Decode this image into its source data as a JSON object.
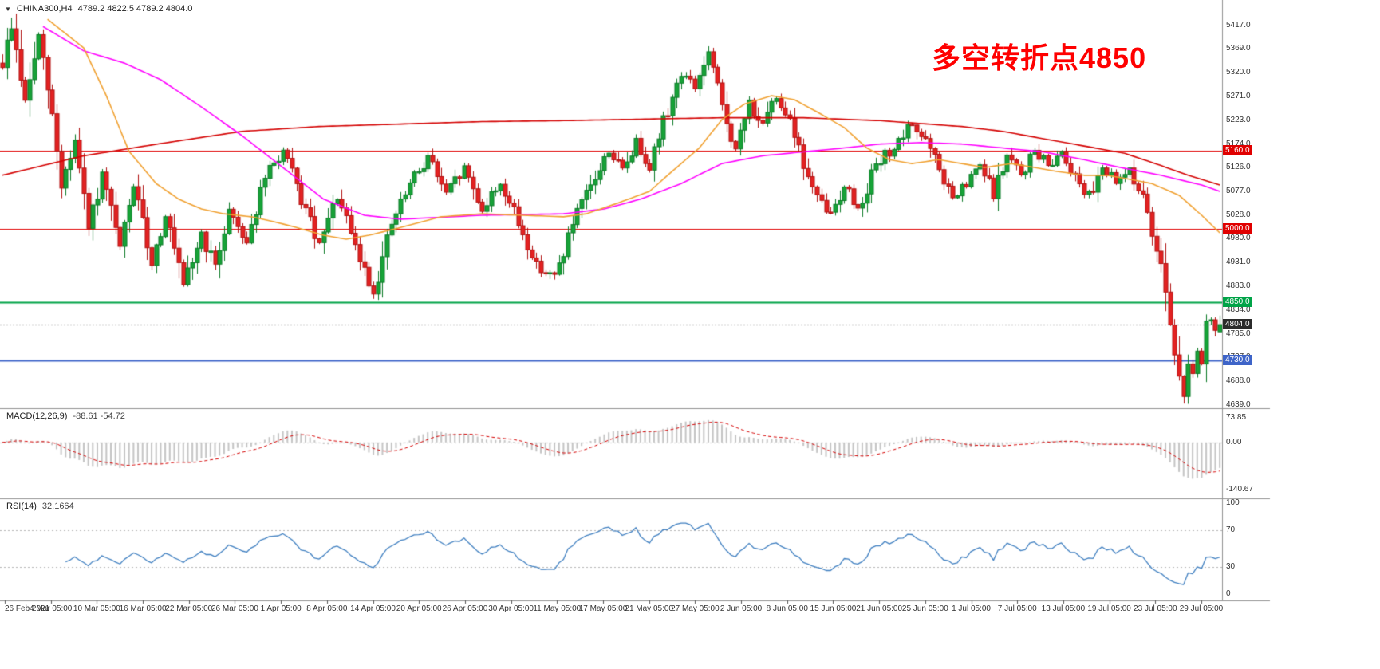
{
  "header": {
    "symbol": "CHINA300,H4",
    "ohlc": "4789.2 4822.5 4789.2 4804.0",
    "collapse_icon": "▼"
  },
  "annotation": {
    "text": "多空转折点4850",
    "color": "#ff0000"
  },
  "macd_label": {
    "name": "MACD(12,26,9)",
    "values": "-88.61 -54.72"
  },
  "rsi_label": {
    "name": "RSI(14)",
    "value": "32.1664"
  },
  "colors": {
    "background": "#ffffff",
    "bull": "#17a338",
    "bull_border": "#0b7a26",
    "bear": "#e32222",
    "bear_border": "#b01111",
    "ma_red": "#d40000",
    "ma_magenta": "#ff00ff",
    "ma_orange": "#f0a030",
    "level_red": "#e00000",
    "level_green": "#00a347",
    "level_blue": "#3e64c8",
    "current_price_line": "#666666",
    "current_tag_bg": "#2b2b2b",
    "macd_hist": "#c4c4c4",
    "macd_signal": "#d40000",
    "rsi_line": "#3f7fc0",
    "axis_text": "#333333",
    "separator": "#909090",
    "dashed_level": "#b5b5b5"
  },
  "price_tags": [
    {
      "label": "5160.0",
      "price": 5160.0,
      "bg": "#e00000"
    },
    {
      "label": "5000.0",
      "price": 5000.0,
      "bg": "#e00000"
    },
    {
      "label": "4850.0",
      "price": 4850.0,
      "bg": "#00a347"
    },
    {
      "label": "4804.0",
      "price": 4804.0,
      "bg": "#2b2b2b"
    },
    {
      "label": "4730.0",
      "price": 4730.0,
      "bg": "#3e64c8"
    }
  ],
  "chart_data": {
    "type": "candlestick",
    "symbol": "CHINA300",
    "timeframe": "H4",
    "candle_count": 270,
    "y_axis": {
      "min": 4639.0,
      "max": 5417.0,
      "tick_labels": [
        "5417.0",
        "5369.0",
        "5320.0",
        "5271.0",
        "5223.0",
        "5174.0",
        "5126.0",
        "5077.0",
        "5028.0",
        "4980.0",
        "4931.0",
        "4883.0",
        "4834.0",
        "4785.0",
        "4737.0",
        "4688.0",
        "4639.0"
      ]
    },
    "x_axis": {
      "labels": [
        "26 Feb 2021",
        "4 Mar 05:00",
        "10 Mar 05:00",
        "16 Mar 05:00",
        "22 Mar 05:00",
        "26 Mar 05:00",
        "1 Apr 05:00",
        "8 Apr 05:00",
        "14 Apr 05:00",
        "20 Apr 05:00",
        "26 Apr 05:00",
        "30 Apr 05:00",
        "11 May 05:00",
        "17 May 05:00",
        "21 May 05:00",
        "27 May 05:00",
        "2 Jun 05:00",
        "8 Jun 05:00",
        "15 Jun 05:00",
        "21 Jun 05:00",
        "25 Jun 05:00",
        "1 Jul 05:00",
        "7 Jul 05:00",
        "13 Jul 05:00",
        "19 Jul 05:00",
        "23 Jul 05:00",
        "29 Jul 05:00"
      ]
    },
    "price_path_anchors": [
      [
        0,
        5340
      ],
      [
        2,
        5415
      ],
      [
        5,
        5260
      ],
      [
        8,
        5395
      ],
      [
        11,
        5230
      ],
      [
        13,
        5090
      ],
      [
        16,
        5180
      ],
      [
        19,
        5000
      ],
      [
        22,
        5110
      ],
      [
        26,
        4960
      ],
      [
        29,
        5090
      ],
      [
        33,
        4930
      ],
      [
        36,
        5030
      ],
      [
        40,
        4880
      ],
      [
        44,
        4990
      ],
      [
        47,
        4920
      ],
      [
        50,
        5040
      ],
      [
        54,
        4975
      ],
      [
        58,
        5105
      ],
      [
        62,
        5160
      ],
      [
        66,
        5060
      ],
      [
        70,
        4965
      ],
      [
        74,
        5065
      ],
      [
        78,
        4960
      ],
      [
        82,
        4870
      ],
      [
        86,
        5010
      ],
      [
        90,
        5090
      ],
      [
        94,
        5150
      ],
      [
        98,
        5070
      ],
      [
        102,
        5125
      ],
      [
        106,
        5040
      ],
      [
        110,
        5095
      ],
      [
        114,
        5010
      ],
      [
        118,
        4925
      ],
      [
        122,
        4900
      ],
      [
        126,
        5010
      ],
      [
        130,
        5085
      ],
      [
        134,
        5160
      ],
      [
        137,
        5120
      ],
      [
        140,
        5180
      ],
      [
        143,
        5130
      ],
      [
        146,
        5220
      ],
      [
        150,
        5320
      ],
      [
        153,
        5290
      ],
      [
        156,
        5360
      ],
      [
        159,
        5250
      ],
      [
        162,
        5160
      ],
      [
        165,
        5260
      ],
      [
        168,
        5210
      ],
      [
        171,
        5270
      ],
      [
        174,
        5230
      ],
      [
        177,
        5130
      ],
      [
        180,
        5060
      ],
      [
        183,
        5030
      ],
      [
        186,
        5090
      ],
      [
        189,
        5040
      ],
      [
        192,
        5110
      ],
      [
        195,
        5150
      ],
      [
        198,
        5175
      ],
      [
        201,
        5215
      ],
      [
        204,
        5180
      ],
      [
        207,
        5120
      ],
      [
        210,
        5060
      ],
      [
        213,
        5090
      ],
      [
        216,
        5130
      ],
      [
        219,
        5070
      ],
      [
        222,
        5150
      ],
      [
        225,
        5110
      ],
      [
        228,
        5160
      ],
      [
        231,
        5130
      ],
      [
        234,
        5160
      ],
      [
        237,
        5110
      ],
      [
        240,
        5070
      ],
      [
        243,
        5130
      ],
      [
        246,
        5090
      ],
      [
        249,
        5125
      ],
      [
        252,
        5060
      ],
      [
        254,
        4990
      ],
      [
        256,
        4940
      ],
      [
        258,
        4810
      ],
      [
        260,
        4690
      ],
      [
        261,
        4655
      ],
      [
        262,
        4735
      ],
      [
        263,
        4705
      ],
      [
        264,
        4745
      ],
      [
        265,
        4715
      ],
      [
        266,
        4800
      ],
      [
        267,
        4815
      ],
      [
        268,
        4790
      ],
      [
        269,
        4804
      ]
    ],
    "last_candle_ohlc": [
      4789.2,
      4822.5,
      4789.2,
      4804.0
    ],
    "wick_extremes": {
      "high_idx": 2,
      "high": 5433,
      "low_idx": 261,
      "low": 4642
    },
    "moving_averages": [
      {
        "name": "slow-ma",
        "color_key": "ma_red",
        "anchors": [
          [
            0,
            5110
          ],
          [
            18,
            5150
          ],
          [
            35,
            5175
          ],
          [
            53,
            5200
          ],
          [
            70,
            5210
          ],
          [
            88,
            5215
          ],
          [
            106,
            5220
          ],
          [
            124,
            5222
          ],
          [
            141,
            5225
          ],
          [
            159,
            5228
          ],
          [
            177,
            5228
          ],
          [
            194,
            5222
          ],
          [
            212,
            5210
          ],
          [
            221,
            5200
          ],
          [
            230,
            5185
          ],
          [
            239,
            5170
          ],
          [
            248,
            5155
          ],
          [
            256,
            5130
          ],
          [
            262,
            5110
          ],
          [
            269,
            5090
          ]
        ]
      },
      {
        "name": "medium-ma",
        "color_key": "ma_magenta",
        "anchors": [
          [
            9,
            5415
          ],
          [
            18,
            5365
          ],
          [
            27,
            5340
          ],
          [
            35,
            5306
          ],
          [
            44,
            5250
          ],
          [
            53,
            5191
          ],
          [
            62,
            5126
          ],
          [
            71,
            5061
          ],
          [
            80,
            5028
          ],
          [
            88,
            5020
          ],
          [
            106,
            5028
          ],
          [
            124,
            5031
          ],
          [
            133,
            5041
          ],
          [
            141,
            5061
          ],
          [
            150,
            5093
          ],
          [
            159,
            5134
          ],
          [
            168,
            5150
          ],
          [
            177,
            5158
          ],
          [
            186,
            5166
          ],
          [
            194,
            5174
          ],
          [
            203,
            5177
          ],
          [
            212,
            5174
          ],
          [
            221,
            5166
          ],
          [
            230,
            5158
          ],
          [
            239,
            5142
          ],
          [
            247,
            5126
          ],
          [
            256,
            5110
          ],
          [
            265,
            5090
          ],
          [
            269,
            5077
          ]
        ]
      },
      {
        "name": "fast-ma",
        "color_key": "ma_orange",
        "anchors": [
          [
            10,
            5430
          ],
          [
            18,
            5371
          ],
          [
            23,
            5273
          ],
          [
            28,
            5159
          ],
          [
            34,
            5093
          ],
          [
            39,
            5061
          ],
          [
            44,
            5041
          ],
          [
            49,
            5031
          ],
          [
            55,
            5025
          ],
          [
            60,
            5015
          ],
          [
            65,
            5003
          ],
          [
            71,
            4987
          ],
          [
            76,
            4979
          ],
          [
            81,
            4987
          ],
          [
            88,
            5003
          ],
          [
            97,
            5025
          ],
          [
            106,
            5031
          ],
          [
            115,
            5028
          ],
          [
            124,
            5025
          ],
          [
            129,
            5031
          ],
          [
            136,
            5053
          ],
          [
            143,
            5077
          ],
          [
            148,
            5118
          ],
          [
            154,
            5166
          ],
          [
            159,
            5224
          ],
          [
            164,
            5256
          ],
          [
            170,
            5273
          ],
          [
            175,
            5265
          ],
          [
            180,
            5240
          ],
          [
            186,
            5208
          ],
          [
            191,
            5166
          ],
          [
            196,
            5142
          ],
          [
            201,
            5134
          ],
          [
            207,
            5142
          ],
          [
            212,
            5134
          ],
          [
            217,
            5126
          ],
          [
            223,
            5134
          ],
          [
            228,
            5126
          ],
          [
            233,
            5118
          ],
          [
            239,
            5110
          ],
          [
            244,
            5110
          ],
          [
            249,
            5102
          ],
          [
            254,
            5093
          ],
          [
            260,
            5069
          ],
          [
            265,
            5028
          ],
          [
            269,
            4992
          ]
        ]
      }
    ],
    "horizontal_lines": [
      {
        "price": 5160.0,
        "color_key": "level_red",
        "width": 1
      },
      {
        "price": 5000.0,
        "color_key": "level_red",
        "width": 1
      },
      {
        "price": 4850.0,
        "color_key": "level_green",
        "width": 2
      },
      {
        "price": 4730.0,
        "color_key": "level_blue",
        "width": 2
      }
    ],
    "current_price": 4804.0,
    "indicators": [
      {
        "type": "MACD",
        "params": [
          12,
          26,
          9
        ],
        "values": [
          -88.61,
          -54.72
        ],
        "scale": {
          "min": -160,
          "max": 90
        },
        "axis_labels": [
          "73.85",
          "0.00",
          "-140.67"
        ]
      },
      {
        "type": "RSI",
        "params": [
          14
        ],
        "value": 32.1664,
        "scale": {
          "min": 0,
          "max": 100
        },
        "levels": [
          70,
          30
        ],
        "axis_labels": [
          "100",
          "70",
          "30",
          "0"
        ]
      }
    ]
  }
}
